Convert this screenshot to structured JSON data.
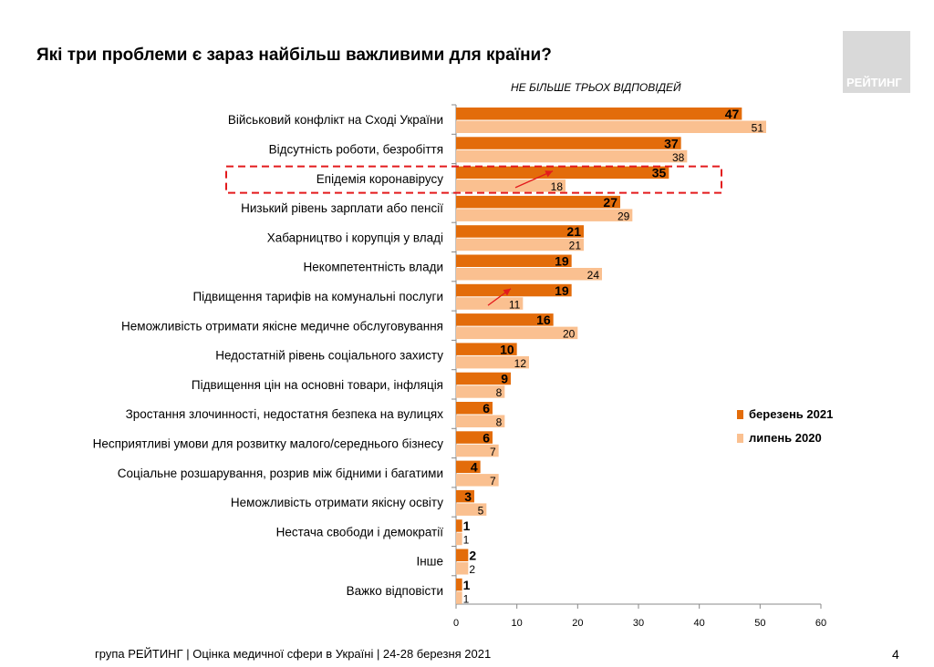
{
  "title": "Які три проблеми є зараз найбільш важливими для країни?",
  "subtitle": "НЕ БІЛЬШЕ ТРЬОХ ВІДПОВІДЕЙ",
  "logo_text": "РЕЙТИНГ",
  "footer": "група РЕЙТИНГ  |  Оцінка медичної сфери в Україні  | 24-28 березня 2021",
  "page_number": "4",
  "colors": {
    "series1": "#e36c0a",
    "series2": "#fac090",
    "highlight": "#e31a1c"
  },
  "chart_data": {
    "type": "bar",
    "orientation": "horizontal",
    "categories": [
      "Військовий конфлікт на Сході України",
      "Відсутність роботи, безробіття",
      "Епідемія коронавірусу",
      "Низький рівень зарплати або пенсії",
      "Хабарництво і корупція у владі",
      "Некомпетентність влади",
      "Підвищення тарифів на комунальні послуги",
      "Неможливість отримати якісне медичне обслуговування",
      "Недостатній рівень соціального захисту",
      "Підвищення цін на основні товари, інфляція",
      "Зростання злочинності, недостатня безпека на вулицях",
      "Несприятливі умови для розвитку малого/середнього бізнесу",
      "Соціальне розшарування, розрив між бідними і багатими",
      "Неможливість отримати якісну освіту",
      "Нестача свободи і демократії",
      "Інше",
      "Важко відповісти"
    ],
    "series": [
      {
        "name": "березень 2021",
        "values": [
          47,
          37,
          35,
          27,
          21,
          19,
          19,
          16,
          10,
          9,
          6,
          6,
          4,
          3,
          1,
          2,
          1
        ]
      },
      {
        "name": "липень 2020",
        "values": [
          51,
          38,
          18,
          29,
          21,
          24,
          11,
          20,
          12,
          8,
          8,
          7,
          7,
          5,
          1,
          2,
          1
        ]
      }
    ],
    "xlim": [
      0,
      60
    ],
    "xticks": [
      0,
      10,
      20,
      30,
      40,
      50,
      60
    ],
    "legend": "right",
    "grid": false,
    "highlighted_category": "Епідемія коронавірусу",
    "arrows_on": [
      "Епідемія коронавірусу",
      "Підвищення тарифів на комунальні послуги"
    ]
  }
}
